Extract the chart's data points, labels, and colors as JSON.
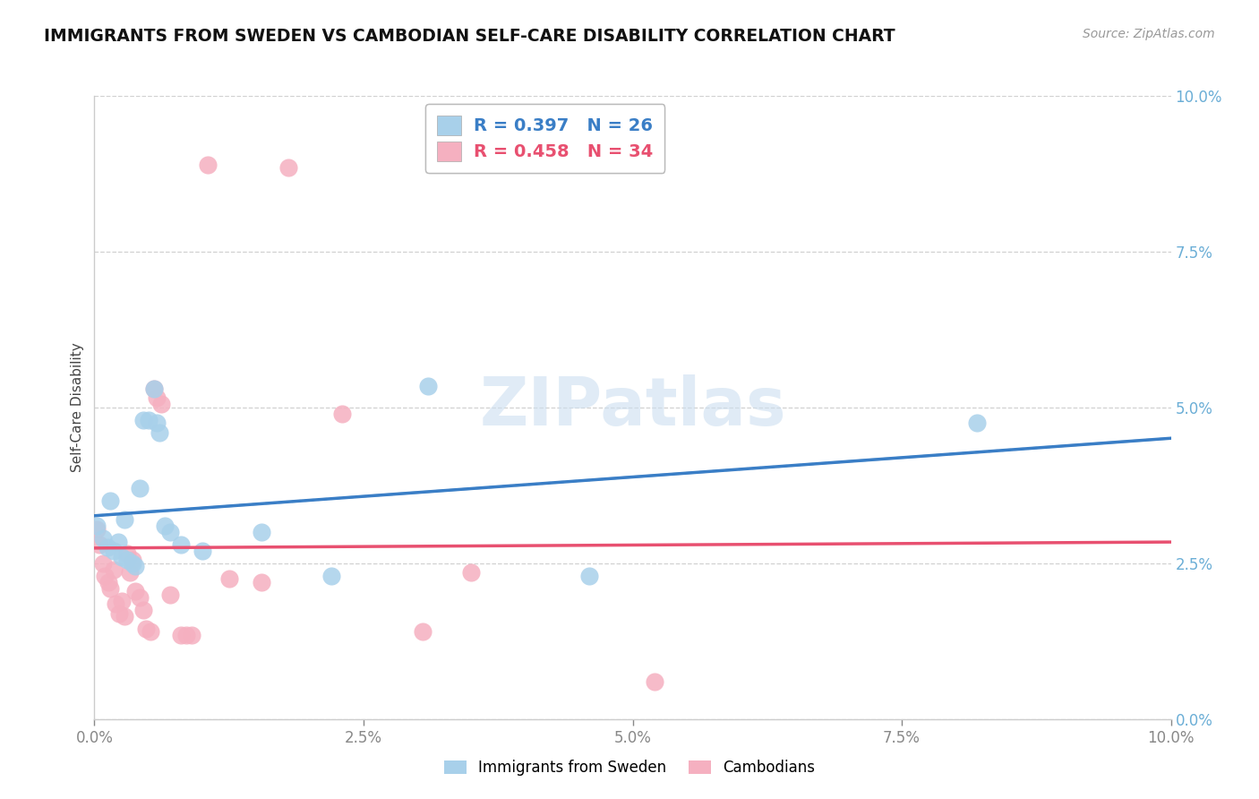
{
  "title": "IMMIGRANTS FROM SWEDEN VS CAMBODIAN SELF-CARE DISABILITY CORRELATION CHART",
  "source": "Source: ZipAtlas.com",
  "ylabel": "Self-Care Disability",
  "xlim": [
    0.0,
    10.0
  ],
  "ylim": [
    0.0,
    10.0
  ],
  "sweden_R": "0.397",
  "sweden_N": "26",
  "cambodian_R": "0.458",
  "cambodian_N": "34",
  "sweden_color": "#A8D0EA",
  "cambodian_color": "#F5B0C0",
  "sweden_line_color": "#3A7EC6",
  "cambodian_line_color": "#E85070",
  "dashed_line_color": "#9CC4E0",
  "sweden_x": [
    0.02,
    0.08,
    0.12,
    0.15,
    0.18,
    0.22,
    0.25,
    0.28,
    0.3,
    0.35,
    0.38,
    0.42,
    0.45,
    0.5,
    0.55,
    0.58,
    0.6,
    0.65,
    0.7,
    0.8,
    1.0,
    1.55,
    2.2,
    3.1,
    4.6,
    8.2
  ],
  "sweden_y": [
    3.1,
    2.9,
    2.75,
    3.5,
    2.7,
    2.85,
    2.6,
    3.2,
    2.55,
    2.5,
    2.45,
    3.7,
    4.8,
    4.8,
    5.3,
    4.75,
    4.6,
    3.1,
    3.0,
    2.8,
    2.7,
    3.0,
    2.3,
    5.35,
    2.3,
    4.75
  ],
  "cambodian_x": [
    0.02,
    0.05,
    0.08,
    0.1,
    0.13,
    0.15,
    0.18,
    0.2,
    0.23,
    0.25,
    0.28,
    0.3,
    0.33,
    0.35,
    0.38,
    0.42,
    0.45,
    0.48,
    0.52,
    0.55,
    0.58,
    0.62,
    0.7,
    0.8,
    0.85,
    0.9,
    1.05,
    1.25,
    1.55,
    1.8,
    2.3,
    3.05,
    3.5,
    5.2
  ],
  "cambodian_y": [
    3.05,
    2.8,
    2.5,
    2.3,
    2.2,
    2.1,
    2.4,
    1.85,
    1.7,
    1.9,
    1.65,
    2.65,
    2.35,
    2.55,
    2.05,
    1.95,
    1.75,
    1.45,
    1.4,
    5.3,
    5.15,
    5.05,
    2.0,
    1.35,
    1.35,
    1.35,
    8.9,
    2.25,
    2.2,
    8.85,
    4.9,
    1.4,
    2.35,
    0.6
  ],
  "watermark_text": "ZIPatlas",
  "background_color": "#FFFFFF",
  "grid_color": "#CCCCCC",
  "title_color": "#111111",
  "source_color": "#999999",
  "ytick_color": "#6BAED6",
  "xtick_color": "#888888",
  "spine_color": "#CCCCCC"
}
